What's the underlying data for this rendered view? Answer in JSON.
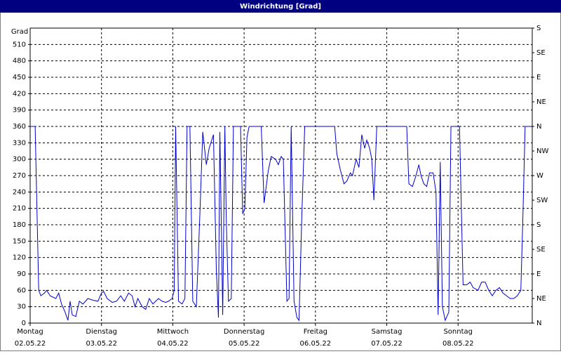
{
  "chart_data": {
    "type": "line",
    "title": "Windrichtung [Grad]",
    "ylabel": "Grad",
    "x": [
      0,
      0.07,
      0.09,
      0.12,
      0.15,
      0.2,
      0.23,
      0.28,
      0.36,
      0.4,
      0.44,
      0.49,
      0.53,
      0.56,
      0.59,
      0.64,
      0.69,
      0.74,
      0.81,
      0.88,
      0.95,
      1.0,
      1.03,
      1.08,
      1.15,
      1.21,
      1.27,
      1.32,
      1.38,
      1.43,
      1.47,
      1.51,
      1.57,
      1.62,
      1.67,
      1.72,
      1.76,
      1.8,
      1.85,
      1.9,
      1.94,
      1.99,
      2.02,
      2.04,
      2.06,
      2.08,
      2.13,
      2.17,
      2.2,
      2.24,
      2.28,
      2.33,
      2.38,
      2.42,
      2.47,
      2.51,
      2.57,
      2.61,
      2.64,
      2.66,
      2.7,
      2.73,
      2.75,
      2.78,
      2.82,
      2.85,
      2.88,
      2.95,
      2.98,
      3.01,
      3.04,
      3.07,
      3.24,
      3.28,
      3.34,
      3.38,
      3.44,
      3.48,
      3.52,
      3.55,
      3.6,
      3.63,
      3.66,
      3.7,
      3.74,
      3.77,
      3.81,
      3.85,
      4.27,
      4.3,
      4.35,
      4.4,
      4.44,
      4.49,
      4.52,
      4.57,
      4.61,
      4.65,
      4.69,
      4.72,
      4.76,
      4.79,
      4.82,
      4.86,
      5.28,
      5.31,
      5.36,
      5.41,
      5.45,
      5.48,
      5.52,
      5.56,
      5.6,
      5.65,
      5.69,
      5.72,
      5.75,
      5.78,
      5.82,
      5.87,
      5.9,
      6.02,
      6.07,
      6.12,
      6.17,
      6.21,
      6.28,
      6.33,
      6.38,
      6.43,
      6.48,
      6.53,
      6.58,
      6.63,
      6.68,
      6.73,
      6.78,
      6.83,
      6.88,
      6.91,
      6.94,
      7.02
    ],
    "series": [
      {
        "name": "Windrichtung",
        "color": "#0000cc",
        "values": [
          360,
          360,
          240,
          60,
          50,
          55,
          60,
          50,
          45,
          55,
          35,
          20,
          5,
          40,
          15,
          12,
          40,
          35,
          45,
          42,
          40,
          55,
          58,
          45,
          38,
          40,
          50,
          40,
          55,
          50,
          30,
          45,
          30,
          25,
          45,
          35,
          40,
          45,
          40,
          38,
          40,
          45,
          60,
          360,
          200,
          40,
          35,
          45,
          360,
          360,
          40,
          30,
          200,
          350,
          290,
          320,
          345,
          100,
          10,
          350,
          15,
          360,
          190,
          40,
          45,
          360,
          360,
          360,
          200,
          210,
          340,
          360,
          360,
          220,
          280,
          305,
          300,
          290,
          305,
          300,
          40,
          45,
          360,
          40,
          10,
          5,
          200,
          360,
          360,
          310,
          280,
          255,
          260,
          275,
          270,
          300,
          285,
          345,
          320,
          335,
          320,
          300,
          225,
          360,
          360,
          255,
          250,
          270,
          290,
          270,
          255,
          250,
          275,
          275,
          240,
          15,
          295,
          30,
          5,
          20,
          360,
          360,
          70,
          70,
          75,
          65,
          60,
          75,
          75,
          60,
          50,
          60,
          65,
          55,
          50,
          45,
          45,
          50,
          60,
          200,
          360,
          360
        ]
      }
    ],
    "xlim": [
      0,
      7.04
    ],
    "xticks": [
      {
        "value": 0,
        "label": "Montag"
      },
      {
        "value": 1,
        "label": "Dienstag"
      },
      {
        "value": 2,
        "label": "Mittwoch"
      },
      {
        "value": 3,
        "label": "Donnerstag"
      },
      {
        "value": 4,
        "label": "Freitag"
      },
      {
        "value": 5,
        "label": "Samstag"
      },
      {
        "value": 6,
        "label": "Sonntag"
      }
    ],
    "xtick_dates": [
      "02.05.22",
      "03.05.22",
      "04.05.22",
      "05.05.22",
      "06.05.22",
      "07.05.22",
      "08.05.22"
    ],
    "ylim": [
      0,
      540
    ],
    "yticks": [
      0,
      30,
      60,
      90,
      120,
      150,
      180,
      210,
      240,
      270,
      300,
      330,
      360,
      390,
      420,
      450,
      480,
      510
    ],
    "y2lim": [
      0,
      540
    ],
    "y2ticks": [
      {
        "value": 0,
        "label": "N"
      },
      {
        "value": 45,
        "label": "NE"
      },
      {
        "value": 90,
        "label": "E"
      },
      {
        "value": 135,
        "label": "SE"
      },
      {
        "value": 180,
        "label": "S"
      },
      {
        "value": 225,
        "label": "SW"
      },
      {
        "value": 270,
        "label": "W"
      },
      {
        "value": 315,
        "label": "NW"
      },
      {
        "value": 360,
        "label": "N"
      },
      {
        "value": 405,
        "label": "NE"
      },
      {
        "value": 450,
        "label": "E"
      },
      {
        "value": 495,
        "label": "SE"
      },
      {
        "value": 540,
        "label": "S"
      }
    ],
    "grid": true
  }
}
